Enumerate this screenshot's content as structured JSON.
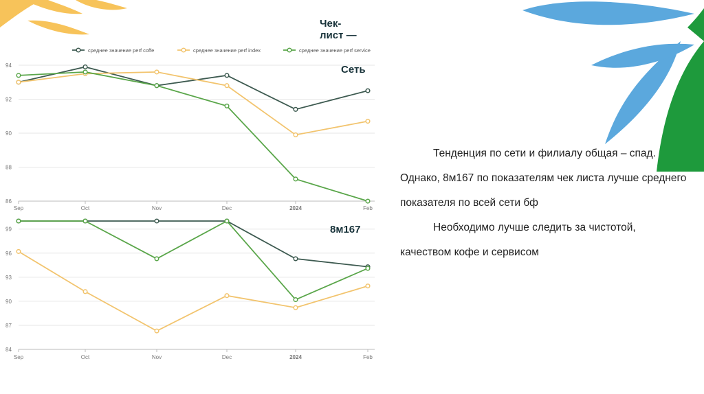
{
  "slide": {
    "heading_line1": "Чек-",
    "heading_line2": "лист —",
    "label_network": "Сеть",
    "label_branch": "8м167",
    "paragraph1": "Тенденция по сети и филиалу общая – спад. Однако, 8м167 по показателям чек листа лучше среднего показателя по всей сети бф",
    "paragraph2": "Необходимо лучше следить за чистотой, качеством кофе и сервисом"
  },
  "colors": {
    "coffee": "#3d5a50",
    "index": "#f2c46e",
    "service": "#5aa64a",
    "leaf_orange": "#f7c35a",
    "leaf_blue": "#5ba8dd",
    "leaf_green": "#1e9a3c"
  },
  "chart_data": [
    {
      "type": "line",
      "x": [
        "Sep",
        "Oct",
        "Nov",
        "Dec",
        "2024",
        "Feb"
      ],
      "ylim": [
        86,
        94
      ],
      "yticks": [
        86,
        88,
        90,
        92,
        94
      ],
      "legend": "top",
      "grid": true,
      "series": [
        {
          "name": "среднее значение perf coffe",
          "color_key": "coffee",
          "values": [
            93.0,
            93.9,
            92.8,
            93.4,
            91.4,
            92.5
          ]
        },
        {
          "name": "среднее значение perf index",
          "color_key": "index",
          "values": [
            93.0,
            93.5,
            93.6,
            92.8,
            89.9,
            90.7
          ]
        },
        {
          "name": "среднее значение perf service",
          "color_key": "service",
          "values": [
            93.4,
            93.6,
            92.8,
            91.6,
            87.3,
            86.0
          ]
        }
      ]
    },
    {
      "type": "line",
      "x": [
        "Sep",
        "Oct",
        "Nov",
        "Dec",
        "2024",
        "Feb"
      ],
      "ylim": [
        84,
        100
      ],
      "yticks": [
        84,
        87,
        90,
        93,
        96,
        99
      ],
      "grid": true,
      "series": [
        {
          "color_key": "coffee",
          "values": [
            100,
            100,
            100,
            100,
            95.3,
            94.3
          ]
        },
        {
          "color_key": "index",
          "values": [
            96.2,
            91.2,
            86.3,
            90.7,
            89.2,
            91.9
          ]
        },
        {
          "color_key": "service",
          "values": [
            100,
            100,
            95.3,
            100,
            90.2,
            94.1
          ]
        }
      ]
    }
  ]
}
